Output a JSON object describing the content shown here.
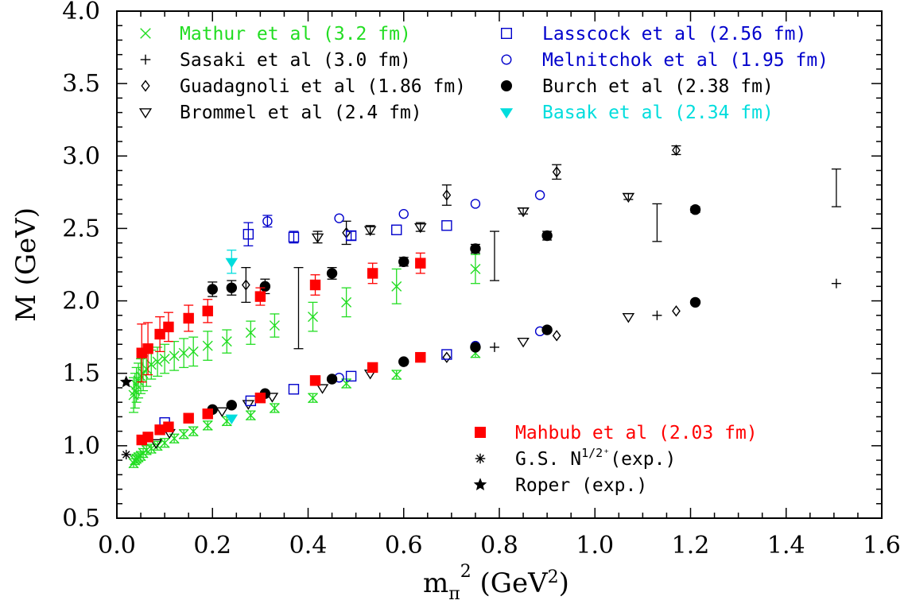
{
  "chart_data": {
    "type": "scatter",
    "xlabel": "m",
    "xlabel_sub": "π",
    "xlabel_sup": "2",
    "xlabel_unit_prefix": " (GeV",
    "xlabel_unit_sup": "2",
    "xlabel_unit_suffix": ")",
    "ylabel": "M (GeV)",
    "xlim": [
      0.0,
      1.6
    ],
    "ylim": [
      0.5,
      4.0
    ],
    "xticks": [
      "0.0",
      "0.2",
      "0.4",
      "0.6",
      "0.8",
      "1.0",
      "1.2",
      "1.4",
      "1.6"
    ],
    "yticks": [
      "0.5",
      "1.0",
      "1.5",
      "2.0",
      "2.5",
      "3.0",
      "3.5",
      "4.0"
    ],
    "grid": false,
    "legend_placement": "top-left and top-right; lower-right for Mahbub and experiment",
    "series": [
      {
        "name": "Mathur et al (3.2 fm)",
        "marker": "x",
        "color": "#22dd22",
        "points": [
          [
            0.035,
            0.88,
            0.03
          ],
          [
            0.038,
            0.9,
            0.03
          ],
          [
            0.041,
            0.91,
            0.03
          ],
          [
            0.045,
            0.92,
            0.03
          ],
          [
            0.05,
            0.93,
            0.03
          ],
          [
            0.055,
            0.95,
            0.03
          ],
          [
            0.062,
            0.97,
            0.03
          ],
          [
            0.072,
            0.98,
            0.03
          ],
          [
            0.085,
            1.0,
            0.03
          ],
          [
            0.1,
            1.02,
            0.03
          ],
          [
            0.12,
            1.05,
            0.03
          ],
          [
            0.14,
            1.08,
            0.03
          ],
          [
            0.16,
            1.1,
            0.03
          ],
          [
            0.19,
            1.14,
            0.03
          ],
          [
            0.23,
            1.17,
            0.03
          ],
          [
            0.28,
            1.21,
            0.03
          ],
          [
            0.33,
            1.26,
            0.03
          ],
          [
            0.41,
            1.33,
            0.03
          ],
          [
            0.48,
            1.43,
            0.03
          ],
          [
            0.585,
            1.49,
            0.03
          ],
          [
            0.75,
            1.64,
            0.03
          ],
          [
            0.035,
            1.35,
            0.12
          ],
          [
            0.038,
            1.38,
            0.12
          ],
          [
            0.041,
            1.42,
            0.12
          ],
          [
            0.045,
            1.45,
            0.12
          ],
          [
            0.05,
            1.48,
            0.12
          ],
          [
            0.055,
            1.5,
            0.12
          ],
          [
            0.062,
            1.53,
            0.12
          ],
          [
            0.072,
            1.56,
            0.1
          ],
          [
            0.085,
            1.58,
            0.1
          ],
          [
            0.1,
            1.6,
            0.1
          ],
          [
            0.12,
            1.62,
            0.1
          ],
          [
            0.14,
            1.64,
            0.1
          ],
          [
            0.16,
            1.65,
            0.1
          ],
          [
            0.19,
            1.69,
            0.1
          ],
          [
            0.23,
            1.72,
            0.08
          ],
          [
            0.28,
            1.78,
            0.08
          ],
          [
            0.33,
            1.83,
            0.08
          ],
          [
            0.41,
            1.89,
            0.1
          ],
          [
            0.48,
            1.99,
            0.1
          ],
          [
            0.585,
            2.1,
            0.12
          ],
          [
            0.75,
            2.22,
            0.1
          ]
        ]
      },
      {
        "name": "Sasaki et al (3.0 fm)",
        "marker": "plus",
        "color": "#000000",
        "points": [
          [
            0.79,
            1.68,
            0
          ],
          [
            1.13,
            1.9,
            0
          ],
          [
            1.505,
            2.12,
            0
          ],
          [
            0.79,
            2.31,
            0.17
          ],
          [
            1.13,
            2.54,
            0.13
          ],
          [
            1.505,
            2.78,
            0.13
          ],
          [
            0.38,
            1.95,
            0.28
          ]
        ]
      },
      {
        "name": "Guadagnoli et al (1.86 fm)",
        "marker": "diamond",
        "color": "#000000",
        "points": [
          [
            0.69,
            1.61,
            0
          ],
          [
            0.92,
            1.76,
            0
          ],
          [
            1.17,
            1.93,
            0
          ],
          [
            0.27,
            2.11,
            0.12
          ],
          [
            0.48,
            2.47,
            0.08
          ],
          [
            0.69,
            2.73,
            0.07
          ],
          [
            0.92,
            2.89,
            0.05
          ],
          [
            1.17,
            3.04,
            0.03
          ]
        ]
      },
      {
        "name": "Brommel et al (2.4 fm)",
        "marker": "triangle-down",
        "color": "#000000",
        "points": [
          [
            0.082,
            1.02,
            0
          ],
          [
            0.11,
            1.09,
            0
          ],
          [
            0.22,
            1.24,
            0
          ],
          [
            0.275,
            1.29,
            0
          ],
          [
            0.325,
            1.34,
            0
          ],
          [
            0.43,
            1.4,
            0
          ],
          [
            0.53,
            1.5,
            0
          ],
          [
            0.85,
            1.72,
            0
          ],
          [
            1.07,
            1.89,
            0
          ],
          [
            0.42,
            2.44,
            0.04
          ],
          [
            0.53,
            2.49,
            0.03
          ],
          [
            0.635,
            2.51,
            0.03
          ],
          [
            0.85,
            2.62,
            0.02
          ],
          [
            1.07,
            2.72,
            0.02
          ]
        ]
      },
      {
        "name": "Lasscock et al (2.56 fm)",
        "marker": "square",
        "color": "#0000cc",
        "points": [
          [
            0.1,
            1.16,
            0
          ],
          [
            0.28,
            1.31,
            0
          ],
          [
            0.37,
            1.39,
            0
          ],
          [
            0.49,
            1.48,
            0
          ],
          [
            0.69,
            1.63,
            0
          ],
          [
            0.275,
            2.46,
            0.08
          ],
          [
            0.37,
            2.44,
            0.04
          ],
          [
            0.49,
            2.45,
            0.03
          ],
          [
            0.585,
            2.49,
            0
          ],
          [
            0.69,
            2.52,
            0
          ]
        ]
      },
      {
        "name": "Melnitchok et al (1.95 fm)",
        "marker": "circle-open",
        "color": "#0000cc",
        "points": [
          [
            0.465,
            1.47,
            0
          ],
          [
            0.75,
            1.69,
            0
          ],
          [
            0.885,
            1.79,
            0
          ],
          [
            0.315,
            2.55,
            0.04
          ],
          [
            0.465,
            2.57,
            0
          ],
          [
            0.6,
            2.6,
            0
          ],
          [
            0.75,
            2.67,
            0
          ],
          [
            0.885,
            2.73,
            0
          ]
        ]
      },
      {
        "name": "Burch et al (2.38 fm)",
        "marker": "circle-filled",
        "color": "#000000",
        "points": [
          [
            0.2,
            1.25,
            0
          ],
          [
            0.24,
            1.28,
            0
          ],
          [
            0.31,
            1.36,
            0
          ],
          [
            0.45,
            1.46,
            0
          ],
          [
            0.6,
            1.58,
            0
          ],
          [
            0.75,
            1.68,
            0
          ],
          [
            0.9,
            1.8,
            0
          ],
          [
            1.21,
            1.99,
            0
          ],
          [
            0.2,
            2.08,
            0.05
          ],
          [
            0.24,
            2.09,
            0.05
          ],
          [
            0.31,
            2.1,
            0.05
          ],
          [
            0.45,
            2.19,
            0.04
          ],
          [
            0.6,
            2.27,
            0.03
          ],
          [
            0.75,
            2.36,
            0.03
          ],
          [
            0.9,
            2.45,
            0.03
          ],
          [
            1.21,
            2.63,
            0.02
          ]
        ]
      },
      {
        "name": "Basak et al (2.34 fm)",
        "marker": "triangle-down-filled",
        "color": "#00dddd",
        "points": [
          [
            0.24,
            1.19,
            0
          ],
          [
            0.24,
            2.27,
            0.08
          ]
        ]
      },
      {
        "name": "Mahbub et al (2.03 fm)",
        "marker": "square-filled",
        "color": "#ff0000",
        "points": [
          [
            0.052,
            1.04,
            0.02
          ],
          [
            0.065,
            1.06,
            0.02
          ],
          [
            0.09,
            1.11,
            0.02
          ],
          [
            0.108,
            1.13,
            0.02
          ],
          [
            0.15,
            1.19,
            0.02
          ],
          [
            0.19,
            1.22,
            0.02
          ],
          [
            0.3,
            1.33,
            0.02
          ],
          [
            0.415,
            1.45,
            0.02
          ],
          [
            0.535,
            1.54,
            0.02
          ],
          [
            0.635,
            1.61,
            0.02
          ],
          [
            0.052,
            1.64,
            0.2
          ],
          [
            0.065,
            1.67,
            0.18
          ],
          [
            0.09,
            1.77,
            0.12
          ],
          [
            0.108,
            1.82,
            0.1
          ],
          [
            0.15,
            1.88,
            0.09
          ],
          [
            0.19,
            1.93,
            0.08
          ],
          [
            0.3,
            2.03,
            0.06
          ],
          [
            0.415,
            2.11,
            0.07
          ],
          [
            0.535,
            2.19,
            0.07
          ],
          [
            0.635,
            2.26,
            0.07
          ]
        ]
      },
      {
        "name_main": "G.S. N",
        "name_sup": "1/2⁺",
        "name_suffix": "(exp.)",
        "marker": "asterisk",
        "color": "#000000",
        "points": [
          [
            0.0195,
            0.939,
            0
          ]
        ]
      },
      {
        "name": "Roper (exp.)",
        "marker": "star",
        "color": "#000000",
        "points": [
          [
            0.0195,
            1.44,
            0
          ]
        ]
      }
    ]
  }
}
